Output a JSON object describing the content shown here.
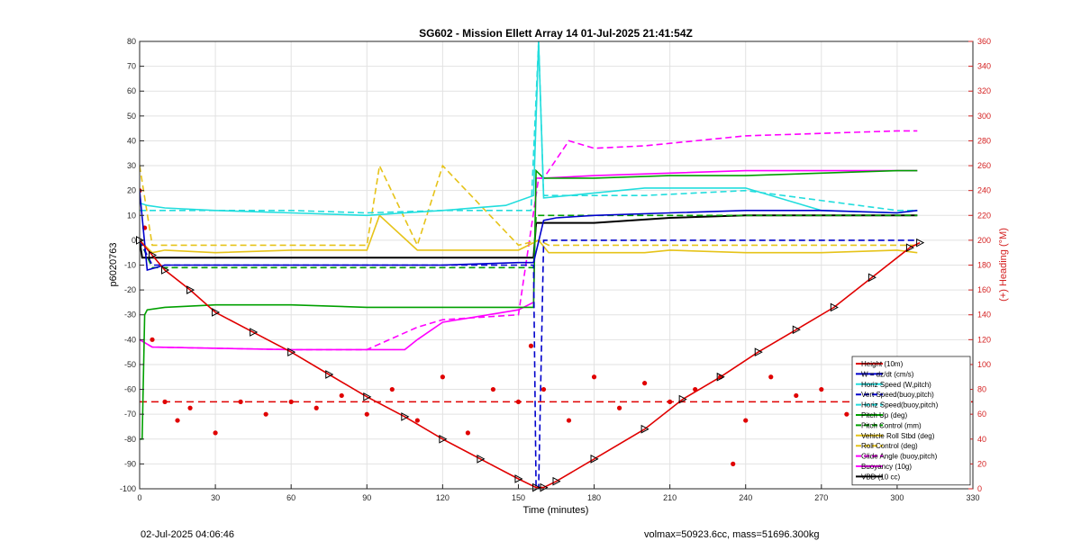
{
  "chart_data": {
    "type": "line",
    "title": "SG602 - Mission Ellett Array 14 01-Jul-2025 21:41:54Z",
    "xlabel": "Time (minutes)",
    "ylabel": "p6020763",
    "ylabel_right": "(+) Heading (°M)",
    "xlim": [
      0,
      330
    ],
    "ylim": [
      -100,
      80
    ],
    "ylim_right": [
      0,
      360
    ],
    "xticks": [
      0,
      30,
      60,
      90,
      120,
      150,
      180,
      210,
      240,
      270,
      300,
      330
    ],
    "yticks": [
      -100,
      -90,
      -80,
      -70,
      -60,
      -50,
      -40,
      -30,
      -20,
      -10,
      0,
      10,
      20,
      30,
      40,
      50,
      60,
      70,
      80
    ],
    "yticks_right": [
      0,
      20,
      40,
      60,
      80,
      100,
      120,
      140,
      160,
      180,
      200,
      220,
      240,
      260,
      280,
      300,
      320,
      340,
      360
    ],
    "grid": true,
    "legend_position": "bottom-right",
    "colors": {
      "height": "#e00000",
      "w": "#0000cc",
      "horiz_speed": "#22dddd",
      "pitch": "#00a000",
      "roll": "#e6c319",
      "glide": "#ff00ff",
      "vbd": "#000000",
      "heading": "#e00000"
    },
    "series": [
      {
        "name": "Height (10m)",
        "style": "solid-triangle-markers",
        "x": [
          0,
          5,
          10,
          20,
          30,
          45,
          60,
          75,
          90,
          105,
          120,
          135,
          150,
          157,
          160,
          165,
          180,
          200,
          215,
          230,
          245,
          260,
          275,
          290,
          305,
          309
        ],
        "y": [
          0,
          -6,
          -12,
          -20,
          -29,
          -37,
          -45,
          -54,
          -63,
          -71,
          -80,
          -88,
          -96,
          -99.5,
          -99.5,
          -97,
          -88,
          -76,
          -64,
          -55,
          -45,
          -36,
          -27,
          -15,
          -3,
          -1
        ]
      },
      {
        "name": "W = dz/dt (cm/s)",
        "style": "solid",
        "x": [
          0,
          3,
          10,
          30,
          60,
          90,
          120,
          150,
          156,
          160,
          165,
          180,
          210,
          240,
          270,
          300,
          308
        ],
        "y": [
          20,
          -12,
          -10,
          -10,
          -10,
          -10,
          -10,
          -9,
          -9,
          8,
          9,
          10,
          11,
          12,
          12,
          11,
          12
        ]
      },
      {
        "name": "Horiz Speed (W,pitch)",
        "style": "solid",
        "x": [
          0,
          3,
          10,
          30,
          60,
          90,
          105,
          120,
          145,
          156,
          158,
          160,
          170,
          200,
          240,
          270,
          300,
          308
        ],
        "y": [
          15,
          14,
          13,
          12,
          11,
          10,
          11,
          12,
          14,
          18,
          80,
          17,
          18,
          21,
          21,
          12,
          11,
          12
        ]
      },
      {
        "name": "Vert Speed(buoy,pitch)",
        "style": "dashed",
        "x": [
          0,
          5,
          30,
          60,
          90,
          120,
          150,
          156,
          157,
          158,
          160,
          200,
          240,
          300,
          308
        ],
        "y": [
          0,
          -10,
          -10,
          -10,
          -10,
          -10,
          -10,
          -10,
          -100,
          -100,
          0,
          0,
          0,
          0,
          0
        ]
      },
      {
        "name": "Horiz Speed(buoy,pitch)",
        "style": "dashed",
        "x": [
          0,
          5,
          30,
          60,
          90,
          120,
          155,
          158,
          160,
          200,
          240,
          300,
          308
        ],
        "y": [
          12,
          12,
          12,
          12,
          11,
          12,
          12,
          80,
          18,
          18,
          20,
          12,
          12
        ]
      },
      {
        "name": "Pitch Up (deg)",
        "style": "solid",
        "x": [
          0,
          1,
          2,
          3,
          10,
          30,
          60,
          90,
          120,
          156,
          157,
          160,
          180,
          210,
          240,
          270,
          300,
          308
        ],
        "y": [
          -80,
          -80,
          -30,
          -28,
          -27,
          -26,
          -26,
          -27,
          -27,
          -27,
          28,
          25,
          25,
          26,
          26,
          27,
          28,
          28
        ]
      },
      {
        "name": "Pitch Control (mm)",
        "style": "dashed",
        "x": [
          0,
          5,
          30,
          60,
          90,
          120,
          156,
          157,
          160,
          200,
          240,
          300,
          308
        ],
        "y": [
          0,
          -11,
          -11,
          -11,
          -11,
          -11,
          -11,
          10,
          10,
          10,
          10,
          10,
          10
        ]
      },
      {
        "name": "Vehicle Roll Stbd (deg)",
        "style": "solid",
        "x": [
          0,
          5,
          10,
          30,
          60,
          90,
          95,
          110,
          120,
          150,
          158,
          162,
          180,
          200,
          210,
          240,
          270,
          300,
          308
        ],
        "y": [
          0,
          -5,
          -4,
          -5,
          -4,
          -4,
          10,
          -4,
          -4,
          -4,
          0,
          -5,
          -5,
          -5,
          -4,
          -5,
          -5,
          -4,
          -5
        ]
      },
      {
        "name": "Roll Control (deg)",
        "style": "dashed",
        "x": [
          0,
          5,
          10,
          30,
          60,
          90,
          95,
          110,
          120,
          150,
          158,
          162,
          180,
          200,
          240,
          270,
          300,
          308
        ],
        "y": [
          30,
          -2,
          -2,
          -2,
          -2,
          -2,
          30,
          -2,
          30,
          -2,
          0,
          -2,
          -2,
          -2,
          -2,
          -2,
          -2,
          -2
        ]
      },
      {
        "name": "Glide Angle (buoy,pitch)",
        "style": "dashed",
        "x": [
          0,
          5,
          60,
          90,
          110,
          120,
          150,
          158,
          160,
          170,
          180,
          200,
          240,
          270,
          300,
          308
        ],
        "y": [
          -40,
          -43,
          -44,
          -44,
          -35,
          -32,
          -30,
          25,
          25,
          40,
          37,
          38,
          42,
          43,
          44,
          44
        ]
      },
      {
        "name": "Buoyancy (10g)",
        "style": "solid",
        "x": [
          0,
          5,
          60,
          90,
          105,
          110,
          120,
          150,
          156,
          157,
          160,
          180,
          210,
          240,
          270,
          300,
          308
        ],
        "y": [
          -40,
          -43,
          -44,
          -44,
          -44,
          -40,
          -33,
          -28,
          -25,
          25,
          25,
          26,
          27,
          28,
          28,
          28,
          28
        ]
      },
      {
        "name": "VBD (10 cc)",
        "style": "solid",
        "x": [
          0,
          1,
          2,
          30,
          60,
          90,
          120,
          150,
          156,
          157,
          160,
          180,
          210,
          240,
          270,
          300,
          308
        ],
        "y": [
          0,
          -7,
          -7,
          -7,
          -7,
          -7,
          -7,
          -7,
          -7,
          7,
          7,
          7,
          9,
          10,
          10,
          10,
          10
        ]
      }
    ],
    "heading_series": {
      "name": "Heading",
      "axis": "right",
      "reference_line_deg": 70,
      "x": [
        0,
        2,
        5,
        10,
        15,
        20,
        30,
        40,
        50,
        60,
        70,
        80,
        90,
        100,
        110,
        120,
        130,
        140,
        150,
        155,
        160,
        170,
        180,
        190,
        200,
        210,
        220,
        230,
        235,
        240,
        250,
        260,
        270,
        280,
        290,
        300,
        308
      ],
      "y": [
        240,
        210,
        120,
        70,
        55,
        65,
        45,
        70,
        60,
        70,
        65,
        75,
        60,
        80,
        55,
        90,
        45,
        80,
        70,
        115,
        80,
        55,
        90,
        65,
        85,
        70,
        80,
        90,
        20,
        55,
        90,
        75,
        80,
        60,
        55,
        50,
        60
      ]
    },
    "legend": [
      "Height (10m)",
      "W = dz/dt (cm/s)",
      "Horiz Speed (W,pitch)",
      "Vert Speed(buoy,pitch)",
      "Horiz Speed(buoy,pitch)",
      "Pitch Up (deg)",
      "Pitch Control (mm)",
      "Vehicle Roll Stbd (deg)",
      "Roll Control (deg)",
      "Glide Angle (buoy,pitch)",
      "Buoyancy (10g)",
      "VBD (10 cc)"
    ]
  },
  "footer": {
    "left": "02-Jul-2025 04:06:46",
    "right": "volmax=50923.6cc, mass=51696.300kg"
  }
}
